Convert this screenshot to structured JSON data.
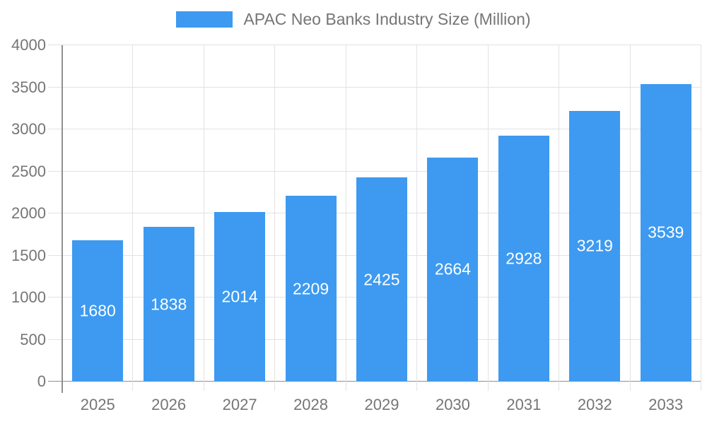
{
  "chart_data": {
    "type": "bar",
    "title": "APAC Neo Banks Industry Size (Million)",
    "legend_entries": [
      "APAC Neo Banks Industry Size (Million)"
    ],
    "legend_position": "top",
    "categories": [
      "2025",
      "2026",
      "2027",
      "2028",
      "2029",
      "2030",
      "2031",
      "2032",
      "2033"
    ],
    "values": [
      1680,
      1838,
      2014,
      2209,
      2425,
      2664,
      2928,
      3219,
      3539
    ],
    "bar_labels": [
      "1680",
      "1838",
      "2014",
      "2209",
      "2425",
      "2664",
      "2928",
      "3219",
      "3539"
    ],
    "xlabel": "",
    "ylabel": "",
    "ylim": [
      0,
      4000
    ],
    "y_ticks": [
      0,
      500,
      1000,
      1500,
      2000,
      2500,
      3000,
      3500,
      4000
    ],
    "y_tick_labels": [
      "0",
      "500",
      "1000",
      "1500",
      "2000",
      "2500",
      "3000",
      "3500",
      "4000"
    ],
    "grid": true,
    "colors": {
      "bar": "#3D9AF0",
      "bar_label_text": "#FFFFFF",
      "axis_label_text": "#757575",
      "legend_text": "#757575",
      "gridline": "#E2E2E2",
      "axis_line": "#909090",
      "background": "#FFFFFF"
    }
  }
}
